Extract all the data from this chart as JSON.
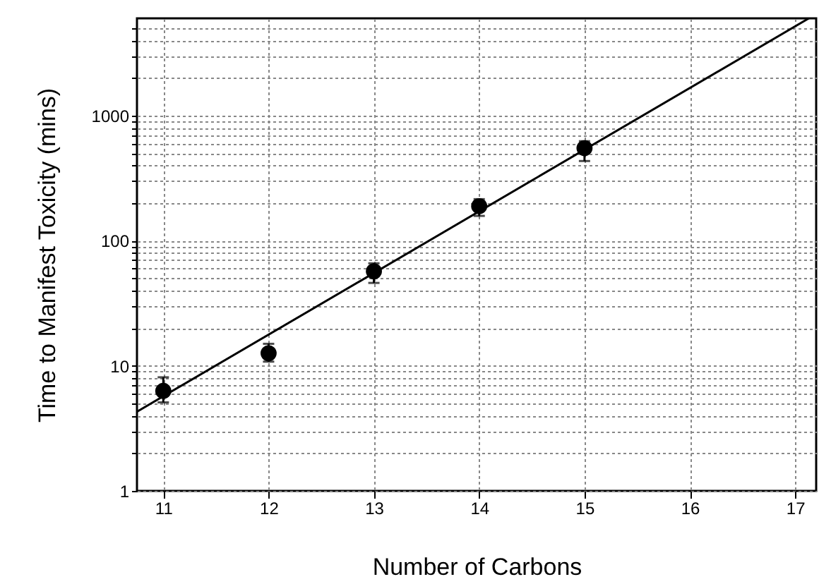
{
  "chart_data": {
    "type": "scatter",
    "xlabel": "Number of Carbons",
    "ylabel": "Time to Manifest Toxicity (mins)",
    "log": "y",
    "grid": true,
    "marker": "circle",
    "xlim": [
      10.75,
      17.2
    ],
    "xticks": [
      11,
      12,
      13,
      14,
      15,
      16,
      17
    ],
    "ylim": [
      1,
      6000
    ],
    "yticks": [
      1,
      {
        "value": 2,
        "label": null
      },
      {
        "value": 3,
        "label": null
      },
      {
        "value": 4,
        "label": null
      },
      {
        "value": 5,
        "label": null
      },
      {
        "value": 6,
        "label": null
      },
      {
        "value": 7,
        "label": null
      },
      {
        "value": 8,
        "label": null
      },
      {
        "value": 9,
        "label": null
      },
      10,
      {
        "value": 20,
        "label": null
      },
      {
        "value": 30,
        "label": null
      },
      {
        "value": 40,
        "label": null
      },
      {
        "value": 50,
        "label": null
      },
      {
        "value": 60,
        "label": null
      },
      {
        "value": 70,
        "label": null
      },
      {
        "value": 80,
        "label": null
      },
      {
        "value": 90,
        "label": null
      },
      100,
      {
        "value": 200,
        "label": null
      },
      {
        "value": 300,
        "label": null
      },
      {
        "value": 400,
        "label": null
      },
      {
        "value": 500,
        "label": null
      },
      {
        "value": 600,
        "label": null
      },
      {
        "value": 700,
        "label": null
      },
      {
        "value": 800,
        "label": null
      },
      {
        "value": 900,
        "label": null
      },
      1000,
      {
        "value": 2000,
        "label": null
      },
      {
        "value": 3000,
        "label": null
      },
      {
        "value": 4000,
        "label": null
      },
      {
        "value": 5000,
        "label": null
      }
    ],
    "series": [
      {
        "color": "#000000",
        "x": [
          11,
          12,
          13,
          14,
          15
        ],
        "values": [
          6.3,
          12.6,
          57,
          189,
          550
        ],
        "errors": [
          [
            5.1,
            8.1
          ],
          [
            10.8,
            15
          ],
          [
            46,
            66
          ],
          [
            158,
            215
          ],
          [
            434,
            625
          ]
        ]
      },
      {
        "type": "line",
        "color": "#000000",
        "line_style": "solid",
        "marker": "none",
        "x": [
          10.75,
          17.13
        ],
        "values": [
          4.3,
          6000
        ]
      }
    ]
  }
}
